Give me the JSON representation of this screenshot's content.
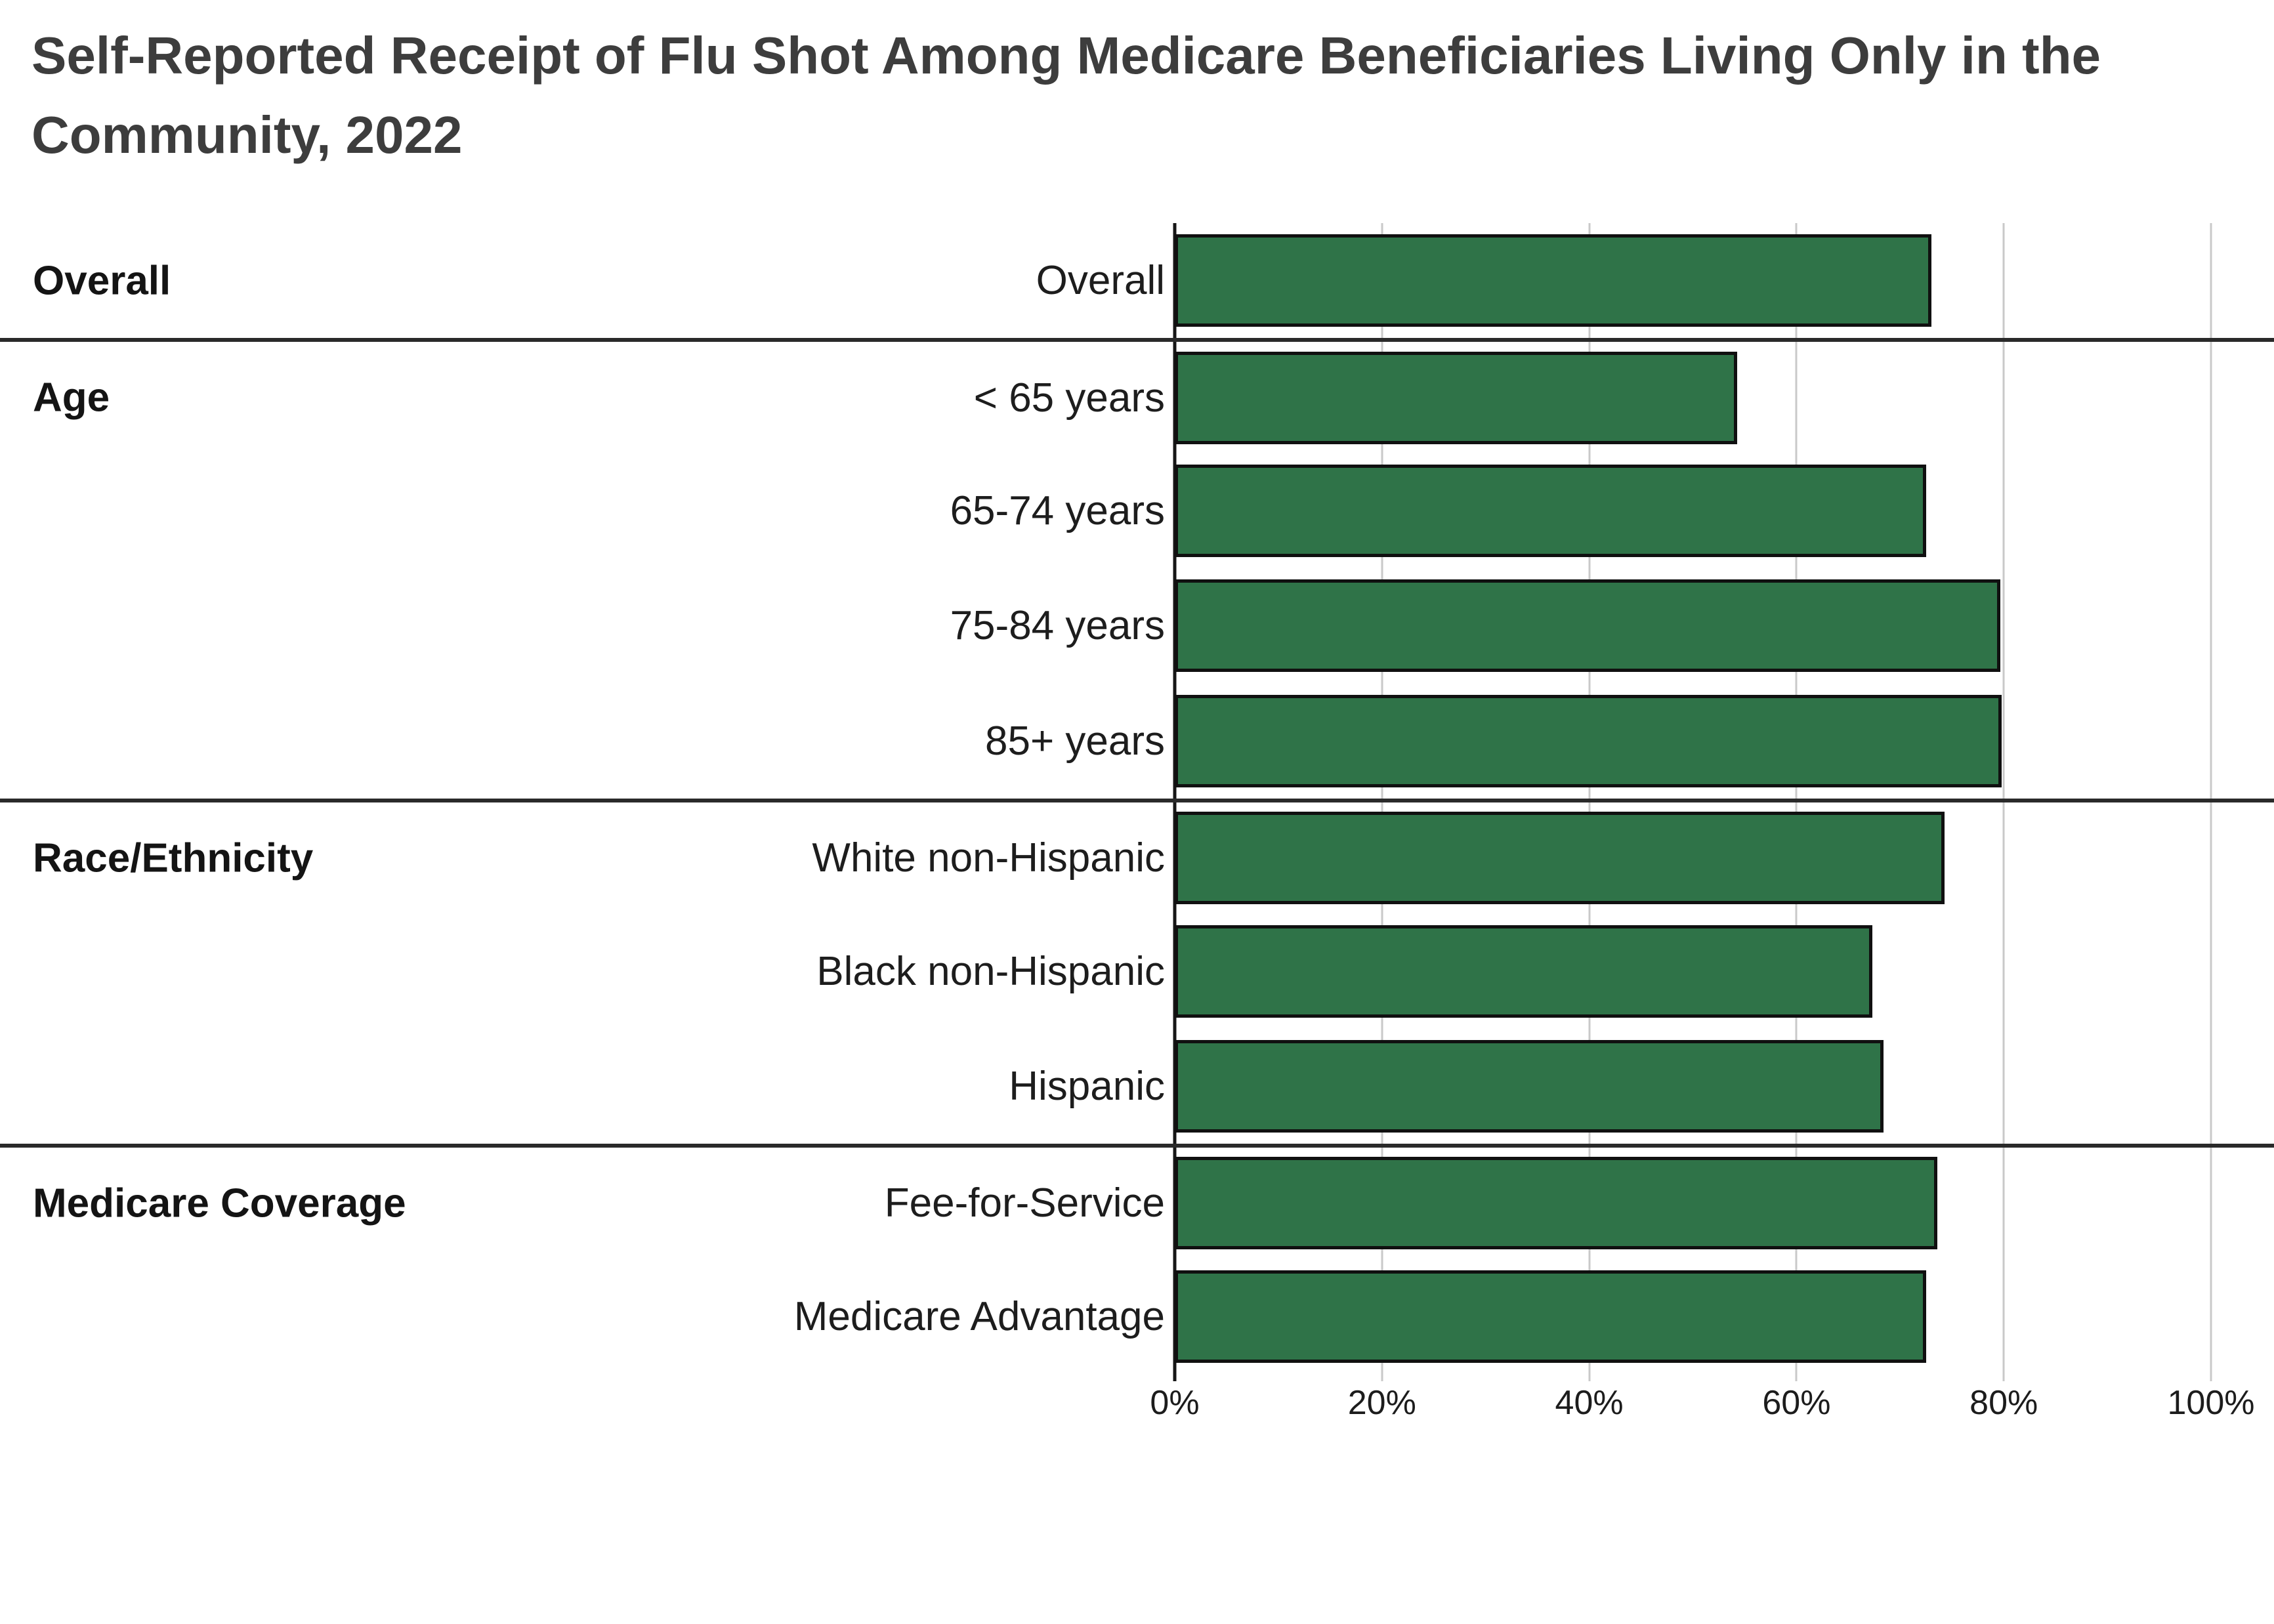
{
  "title": "Self-Reported Receipt of Flu Shot Among Medicare Beneficiaries Living Only in the Community, 2022",
  "chart_data": {
    "type": "bar",
    "orientation": "horizontal",
    "title": "Self-Reported Receipt of Flu Shot Among Medicare Beneficiaries Living Only in the Community, 2022",
    "xlabel": "",
    "ylabel": "",
    "units": "percent",
    "xlim": [
      0,
      100
    ],
    "x_ticks": [
      "0%",
      "20%",
      "40%",
      "60%",
      "80%",
      "100%"
    ],
    "grid": true,
    "legend": false,
    "bar_color": "#2f7348",
    "bar_border_color": "#101010",
    "gridline_color": "#c9c9c9",
    "divider_color": "#2a2a2a",
    "groups": [
      {
        "group": "Overall",
        "rows": [
          {
            "label": "Overall",
            "value": 73.0
          }
        ]
      },
      {
        "group": "Age",
        "rows": [
          {
            "label": "< 65 years",
            "value": 54.3
          },
          {
            "label": "65-74 years",
            "value": 72.5
          },
          {
            "label": "75-84 years",
            "value": 79.7
          },
          {
            "label": "85+ years",
            "value": 79.8
          }
        ]
      },
      {
        "group": "Race/Ethnicity",
        "rows": [
          {
            "label": "White non-Hispanic",
            "value": 74.3
          },
          {
            "label": "Black non-Hispanic",
            "value": 67.3
          },
          {
            "label": "Hispanic",
            "value": 68.4
          }
        ]
      },
      {
        "group": "Medicare Coverage",
        "rows": [
          {
            "label": "Fee-for-Service",
            "value": 73.6
          },
          {
            "label": "Medicare Advantage",
            "value": 72.5
          }
        ]
      }
    ]
  }
}
